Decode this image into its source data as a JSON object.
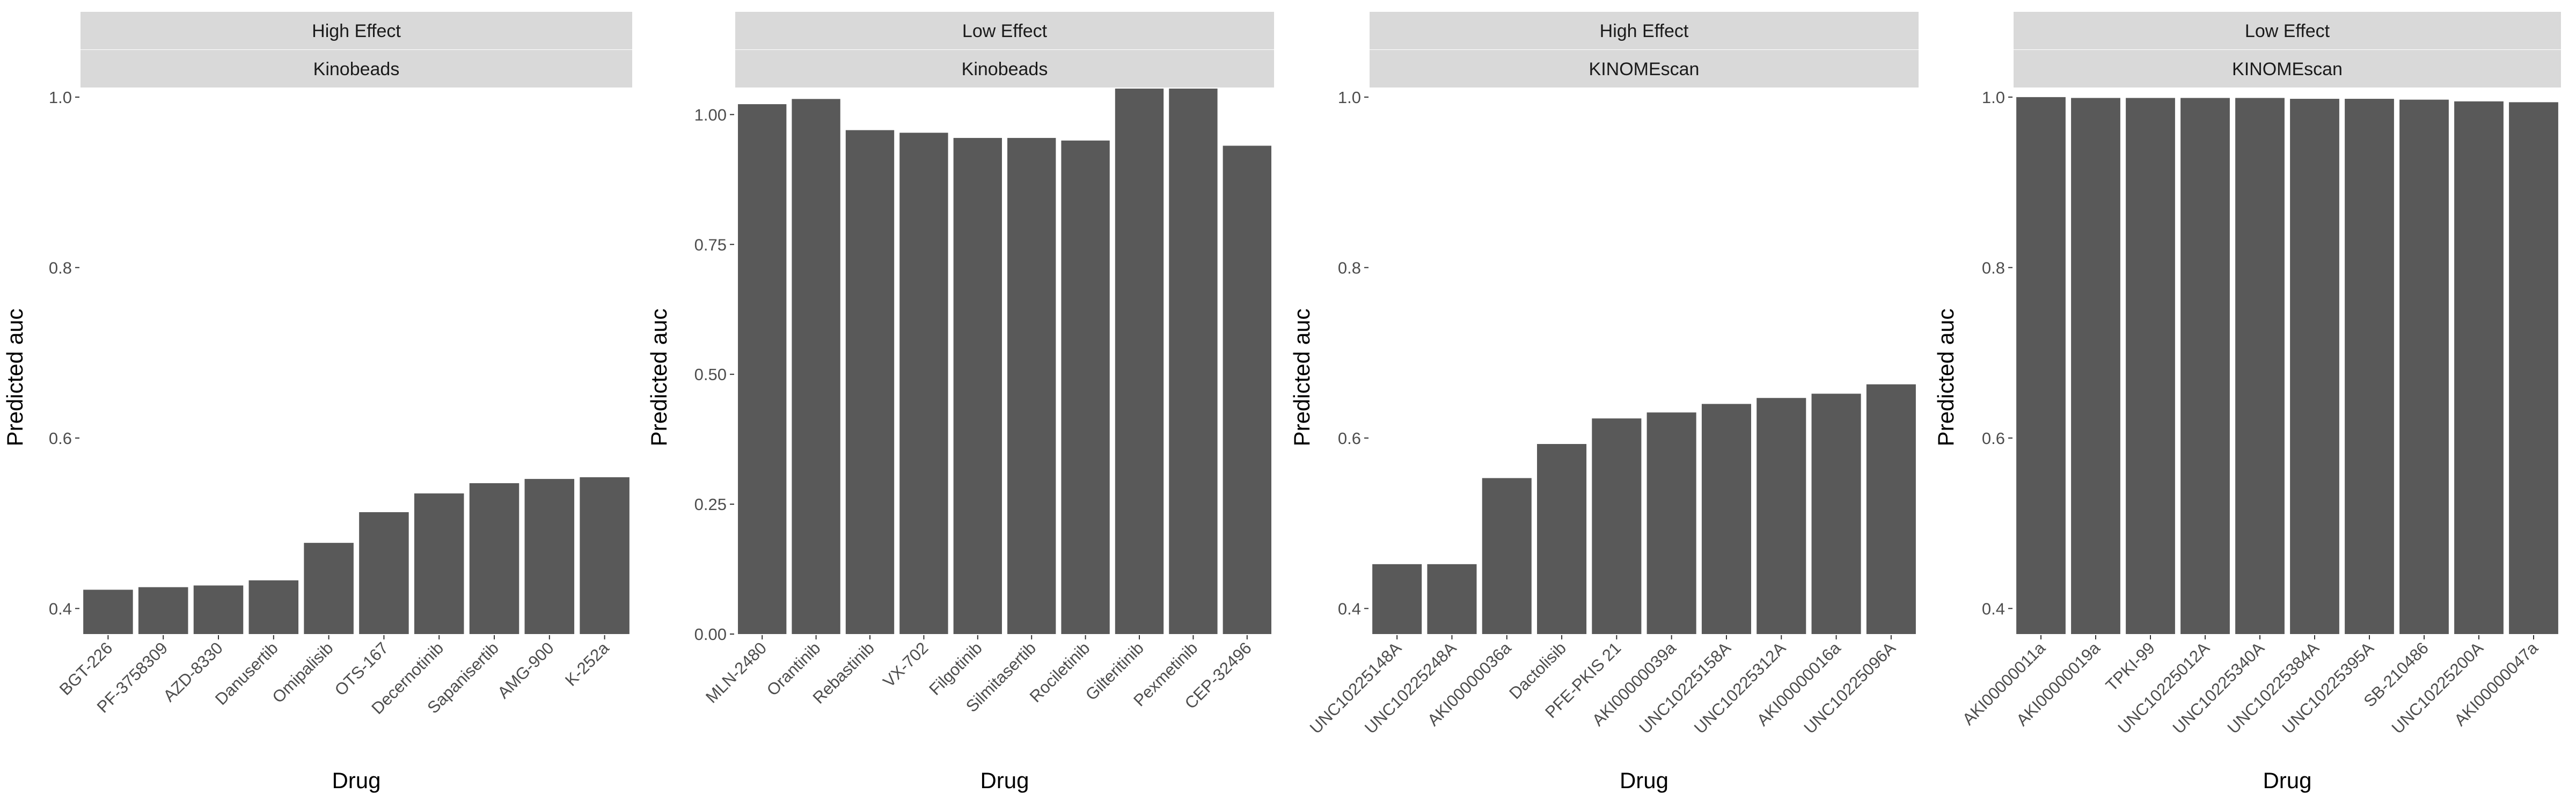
{
  "colors": {
    "bar": "#595959",
    "strip_bg": "#d9d9d9",
    "strip_text": "#1a1a1a",
    "axis_text": "#4d4d4d",
    "axis_title": "#000000",
    "tick": "#333333",
    "background": "#ffffff"
  },
  "chart_data": [
    {
      "type": "bar",
      "strip_top": "High Effect",
      "strip_bottom": "Kinobeads",
      "xlabel": "Drug",
      "ylabel": "Predicted auc",
      "ylim": [
        0.37,
        1.01
      ],
      "yticks": [
        0.4,
        0.6,
        0.8,
        1.0
      ],
      "ytick_labels": [
        "0.4",
        "0.6",
        "0.8",
        "1.0"
      ],
      "grid": false,
      "categories": [
        "BGT-226",
        "PF-3758309",
        "AZD-8330",
        "Danusertib",
        "Omipalisib",
        "OTS-167",
        "Decernotinib",
        "Sapanisertib",
        "AMG-900",
        "K-252a"
      ],
      "values": [
        0.422,
        0.425,
        0.427,
        0.433,
        0.477,
        0.513,
        0.535,
        0.547,
        0.552,
        0.554
      ]
    },
    {
      "type": "bar",
      "strip_top": "Low Effect",
      "strip_bottom": "Kinobeads",
      "xlabel": "Drug",
      "ylabel": "Predicted auc",
      "ylim": [
        0.0,
        1.05
      ],
      "yticks": [
        0.0,
        0.25,
        0.5,
        0.75,
        1.0
      ],
      "ytick_labels": [
        "0.00",
        "0.25",
        "0.50",
        "0.75",
        "1.00"
      ],
      "grid": false,
      "categories": [
        "MLN-2480",
        "Orantinib",
        "Rebastinib",
        "VX-702",
        "Filgotinib",
        "Silmitasertib",
        "Rociletinib",
        "Gilteritinib",
        "Pexmetinib",
        "CEP-32496"
      ],
      "values": [
        1.02,
        1.03,
        0.97,
        0.965,
        0.955,
        0.955,
        0.95,
        1.05,
        1.05,
        0.94
      ]
    },
    {
      "type": "bar",
      "strip_top": "High Effect",
      "strip_bottom": "KINOMEscan",
      "xlabel": "Drug",
      "ylabel": "Predicted auc",
      "ylim": [
        0.37,
        1.01
      ],
      "yticks": [
        0.4,
        0.6,
        0.8,
        1.0
      ],
      "ytick_labels": [
        "0.4",
        "0.6",
        "0.8",
        "1.0"
      ],
      "grid": false,
      "categories": [
        "UNC10225148A",
        "UNC10225248A",
        "AKI00000036a",
        "Dactolisib",
        "PFE-PKIS 21",
        "AKI00000039a",
        "UNC10225158A",
        "UNC10225312A",
        "AKI00000016a",
        "UNC10225096A"
      ],
      "values": [
        0.452,
        0.452,
        0.553,
        0.593,
        0.623,
        0.63,
        0.64,
        0.647,
        0.652,
        0.663
      ]
    },
    {
      "type": "bar",
      "strip_top": "Low Effect",
      "strip_bottom": "KINOMEscan",
      "xlabel": "Drug",
      "ylabel": "Predicted auc",
      "ylim": [
        0.37,
        1.01
      ],
      "yticks": [
        0.4,
        0.6,
        0.8,
        1.0
      ],
      "ytick_labels": [
        "0.4",
        "0.6",
        "0.8",
        "1.0"
      ],
      "grid": false,
      "categories": [
        "AKI00000011a",
        "AKI00000019a",
        "TPKI-99",
        "UNC10225012A",
        "UNC10225340A",
        "UNC10225384A",
        "UNC10225395A",
        "SB-210486",
        "UNC10225200A",
        "AKI00000047a"
      ],
      "values": [
        1.0,
        0.999,
        0.999,
        0.999,
        0.999,
        0.998,
        0.998,
        0.997,
        0.995,
        0.994
      ]
    }
  ]
}
